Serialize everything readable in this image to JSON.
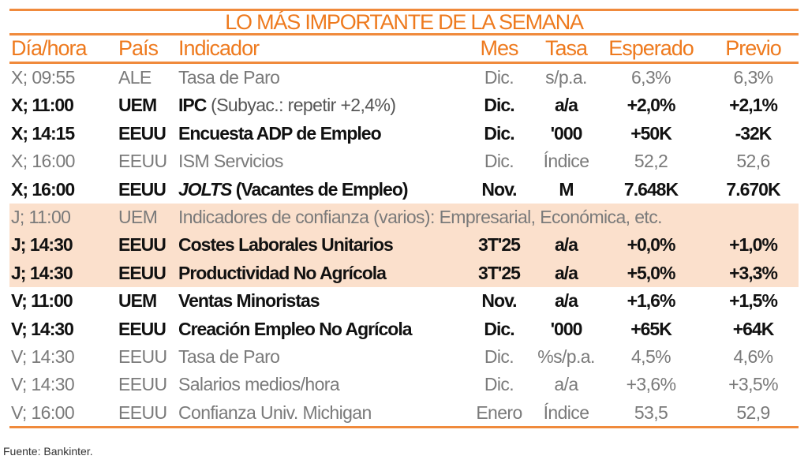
{
  "title": "LO MÁS IMPORTANTE DE LA SEMANA",
  "headers": [
    "Día/hora",
    "País",
    "Indicador",
    "Mes",
    "Tasa",
    "Esperado",
    "Previo"
  ],
  "rows": [
    {
      "style": "light",
      "dia": "X; 09:55",
      "pais": "ALE",
      "ind": "Tasa de Paro",
      "note": "",
      "mes": "Dic.",
      "tasa": "s/p.a.",
      "esp": "6,3%",
      "prev": "6,3%"
    },
    {
      "style": "bold",
      "dia": "X; 11:00",
      "pais": "UEM",
      "ind": "IPC",
      "note": " (Subyac.: repetir +2,4%)",
      "mes": "Dic.",
      "tasa": "a/a",
      "esp": "+2,0%",
      "prev": "+2,1%"
    },
    {
      "style": "bold",
      "dia": "X; 14:15",
      "pais": "EEUU",
      "ind": "Encuesta ADP de Empleo",
      "note": "",
      "mes": "Dic.",
      "tasa": "'000",
      "esp": "+50K",
      "prev": "-32K"
    },
    {
      "style": "light",
      "dia": "X; 16:00",
      "pais": "EEUU",
      "ind": "ISM Servicios",
      "note": "",
      "mes": "Dic.",
      "tasa": "Índice",
      "esp": "52,2",
      "prev": "52,6"
    },
    {
      "style": "bold",
      "dia": "X; 16:00",
      "pais": "EEUU",
      "ind_italic": "JOLTS",
      "ind": " (Vacantes de Empleo)",
      "note": "",
      "mes": "Nov.",
      "tasa": "M",
      "esp": "7.648K",
      "prev": "7.670K"
    },
    {
      "style": "light",
      "dia": "J; 11:00",
      "pais": "UEM",
      "ind": "Indicadores de confianza (varios): Empresarial, Económica, etc.",
      "note": "",
      "mes": "",
      "tasa": "",
      "esp": "",
      "prev": ""
    },
    {
      "style": "bold",
      "dia": "J; 14:30",
      "pais": "EEUU",
      "ind": "Costes Laborales Unitarios",
      "note": "",
      "mes": "3T'25",
      "tasa": "a/a",
      "esp": "+0,0%",
      "prev": "+1,0%"
    },
    {
      "style": "bold",
      "dia": "J; 14:30",
      "pais": "EEUU",
      "ind": "Productividad No Agrícola",
      "note": "",
      "mes": "3T'25",
      "tasa": "a/a",
      "esp": "+5,0%",
      "prev": "+3,3%"
    },
    {
      "style": "bold",
      "dia": "V; 11:00",
      "pais": "UEM",
      "ind": "Ventas Minoristas",
      "note": "",
      "mes": "Nov.",
      "tasa": "a/a",
      "esp": "+1,6%",
      "prev": "+1,5%"
    },
    {
      "style": "bold",
      "dia": "V; 14:30",
      "pais": "EEUU",
      "ind": "Creación Empleo No Agrícola",
      "note": "",
      "mes": "Dic.",
      "tasa": "'000",
      "esp": "+65K",
      "prev": "+64K"
    },
    {
      "style": "light",
      "dia": "V; 14:30",
      "pais": "EEUU",
      "ind": "Tasa de Paro",
      "note": "",
      "mes": "Dic.",
      "tasa": "%s/p.a.",
      "esp": "4,5%",
      "prev": "4,6%"
    },
    {
      "style": "light",
      "dia": "V; 14:30",
      "pais": "EEUU",
      "ind": "Salarios medios/hora",
      "note": "",
      "mes": "Dic.",
      "tasa": "a/a",
      "esp": "+3,6%",
      "prev": "+3,5%"
    },
    {
      "style": "light",
      "dia": "V; 16:00",
      "pais": "EEUU",
      "ind": "Confianza Univ. Michigan",
      "note": "",
      "mes": "Enero",
      "tasa": "Índice",
      "esp": "53,5",
      "prev": "52,9"
    }
  ],
  "source": "Fuente: Bankinter.",
  "colors": {
    "accent": "#ee7a1e",
    "highlight": "#fbe0cc"
  }
}
